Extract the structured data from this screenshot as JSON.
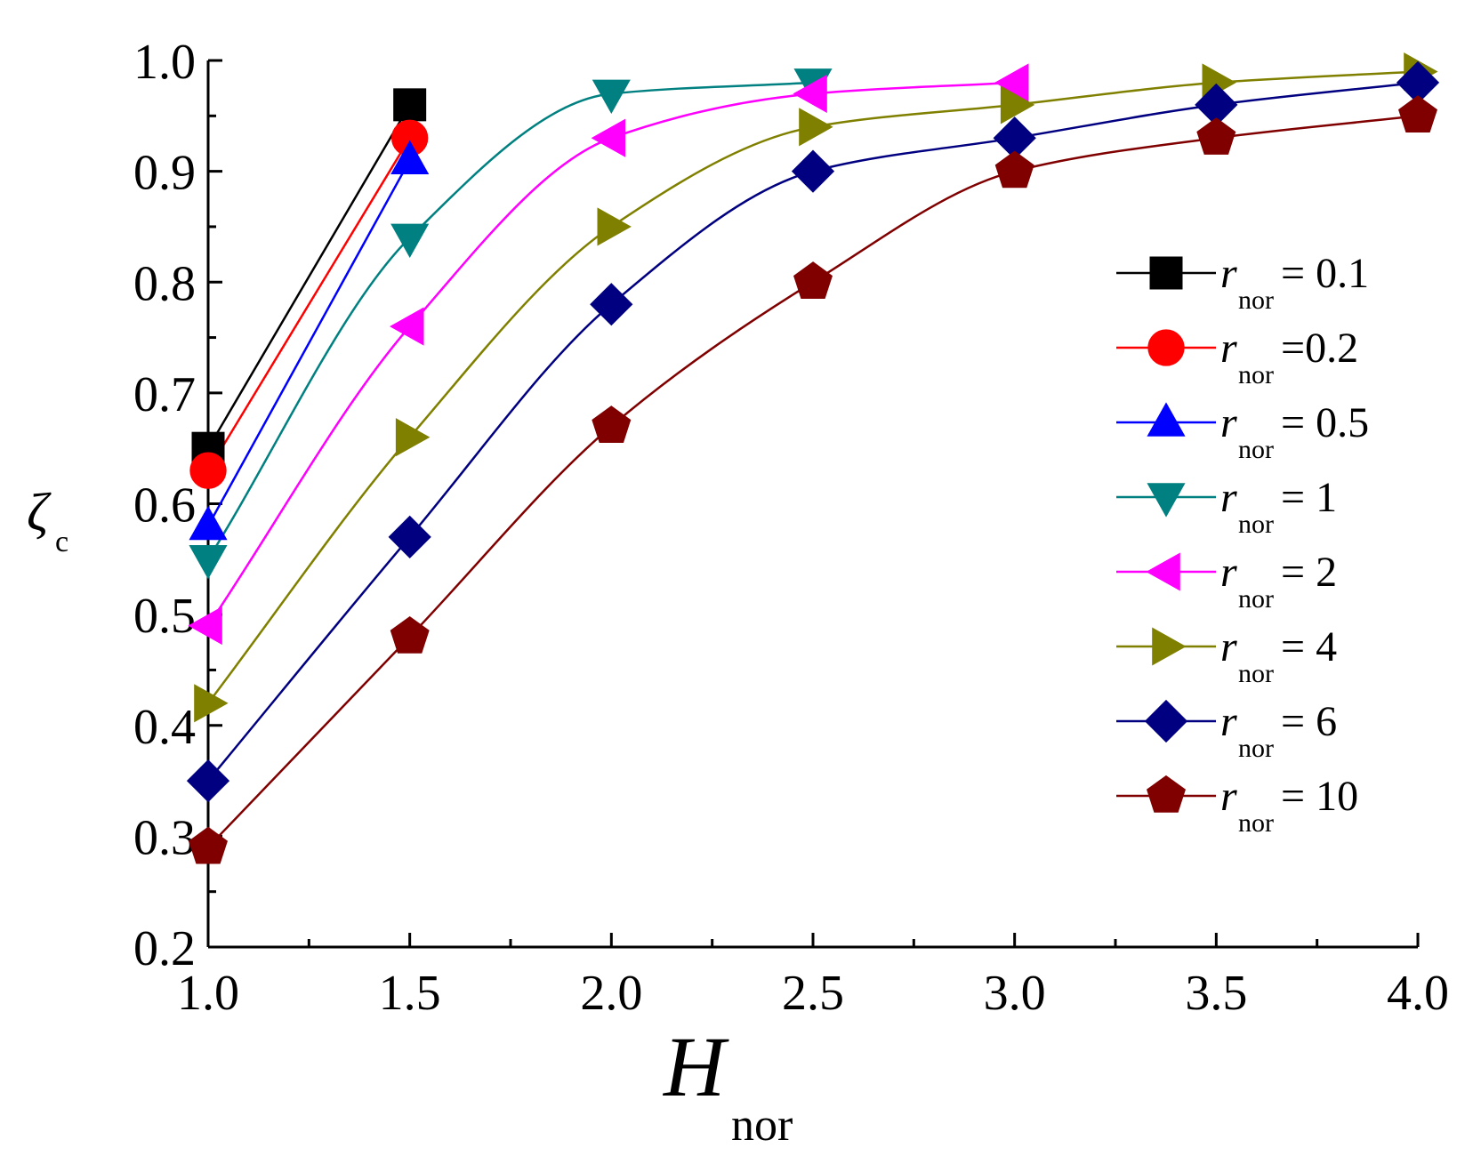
{
  "chart_data": {
    "type": "line",
    "title": "",
    "xlabel": "H",
    "xlabel_sub": "nor",
    "ylabel": "ζ",
    "ylabel_sub": "c",
    "xlim": [
      1.0,
      4.0
    ],
    "ylim": [
      0.2,
      1.0
    ],
    "x_ticks": [
      "1.0",
      "1.5",
      "2.0",
      "2.5",
      "3.0",
      "3.5",
      "4.0"
    ],
    "y_ticks": [
      "0.2",
      "0.3",
      "0.4",
      "0.5",
      "0.6",
      "0.7",
      "0.8",
      "0.9",
      "1.0"
    ],
    "legend_position": "right",
    "series": [
      {
        "name": "= 0.1",
        "legend_var": "r",
        "legend_sub": "nor",
        "color": "#000000",
        "marker": "square",
        "x": [
          1.0,
          1.5
        ],
        "values": [
          0.65,
          0.96
        ]
      },
      {
        "name": "=0.2",
        "legend_var": "r",
        "legend_sub": "nor",
        "color": "#ff0000",
        "marker": "circle",
        "x": [
          1.0,
          1.5
        ],
        "values": [
          0.63,
          0.93
        ]
      },
      {
        "name": "= 0.5",
        "legend_var": "r",
        "legend_sub": "nor",
        "color": "#0000ff",
        "marker": "triangle-up",
        "x": [
          1.0,
          1.5
        ],
        "values": [
          0.58,
          0.91
        ]
      },
      {
        "name": "= 1",
        "legend_var": "r",
        "legend_sub": "nor",
        "color": "#008080",
        "marker": "triangle-down",
        "x": [
          1.0,
          1.5,
          2.0,
          2.5
        ],
        "values": [
          0.55,
          0.84,
          0.97,
          0.98
        ]
      },
      {
        "name": "= 2",
        "legend_var": "r",
        "legend_sub": "nor",
        "color": "#ff00ff",
        "marker": "triangle-left",
        "x": [
          1.0,
          1.5,
          2.0,
          2.5,
          3.0
        ],
        "values": [
          0.49,
          0.76,
          0.93,
          0.97,
          0.98
        ]
      },
      {
        "name": "= 4",
        "legend_var": "r",
        "legend_sub": "nor",
        "color": "#808000",
        "marker": "triangle-right",
        "x": [
          1.0,
          1.5,
          2.0,
          2.5,
          3.0,
          3.5,
          4.0
        ],
        "values": [
          0.42,
          0.66,
          0.85,
          0.94,
          0.96,
          0.98,
          0.99
        ]
      },
      {
        "name": "= 6",
        "legend_var": "r",
        "legend_sub": "nor",
        "color": "#000080",
        "marker": "diamond",
        "x": [
          1.0,
          1.5,
          2.0,
          2.5,
          3.0,
          3.5,
          4.0
        ],
        "values": [
          0.35,
          0.57,
          0.78,
          0.9,
          0.93,
          0.96,
          0.98
        ]
      },
      {
        "name": "= 10",
        "legend_var": "r",
        "legend_sub": "nor",
        "color": "#800000",
        "marker": "pentagon",
        "x": [
          1.0,
          1.5,
          2.0,
          2.5,
          3.0,
          3.5,
          4.0
        ],
        "values": [
          0.29,
          0.48,
          0.67,
          0.8,
          0.9,
          0.93,
          0.95
        ]
      }
    ]
  }
}
